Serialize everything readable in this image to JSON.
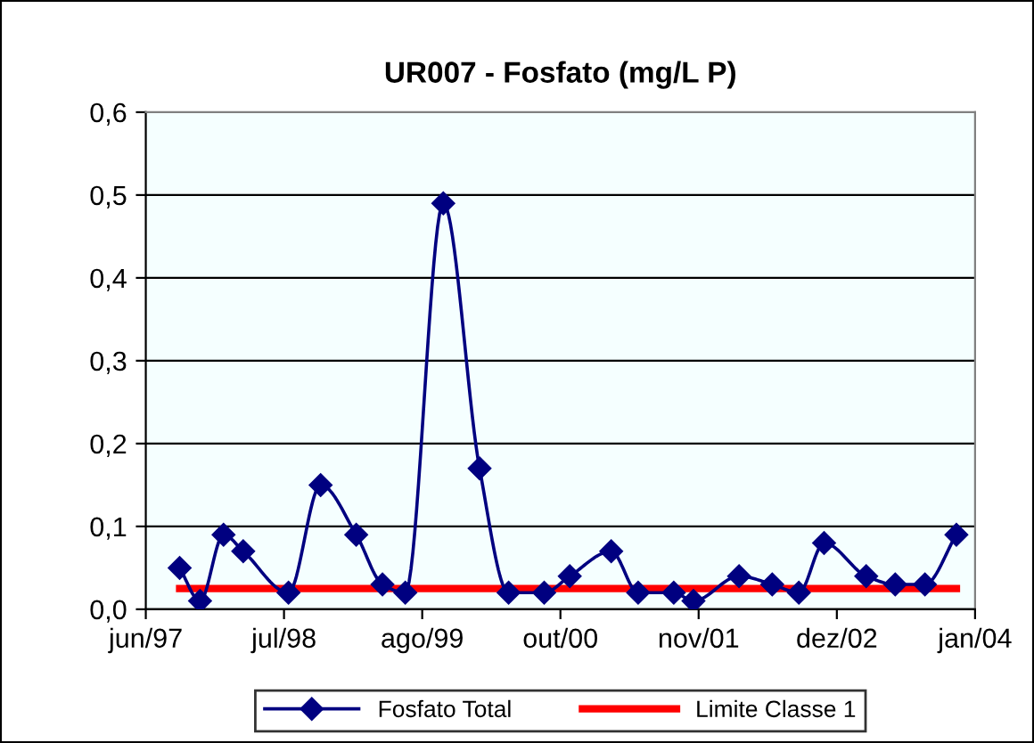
{
  "chart_data": {
    "type": "line",
    "title": "UR007 - Fosfato (mg/L P)",
    "series": [
      {
        "name": "Fosfato Total",
        "color": "#000080",
        "marker": "diamond",
        "x": [
          "1997-09-26",
          "1997-11-24",
          "1998-01-31",
          "1998-03-29",
          "1998-08-07",
          "1998-11-08",
          "1999-02-19",
          "1999-05-06",
          "1999-07-11",
          "1999-10-29",
          "2000-02-11",
          "2000-05-05",
          "2000-08-16",
          "2000-10-29",
          "2001-02-26",
          "2001-05-15",
          "2001-08-26",
          "2001-10-22",
          "2002-03-03",
          "2002-06-07",
          "2002-08-23",
          "2002-11-04",
          "2003-03-06",
          "2003-05-29",
          "2003-08-23",
          "2003-11-22"
        ],
        "values": [
          0.05,
          0.01,
          0.09,
          0.07,
          0.02,
          0.15,
          0.09,
          0.03,
          0.02,
          0.49,
          0.17,
          0.02,
          0.02,
          0.04,
          0.07,
          0.02,
          0.02,
          0.01,
          0.04,
          0.03,
          0.02,
          0.08,
          0.04,
          0.03,
          0.03,
          0.09
        ]
      },
      {
        "name": "Limite Classe 1",
        "color": "#ff0000",
        "marker": "none",
        "x": [
          "1997-09-26",
          "2003-11-22"
        ],
        "values": [
          0.025,
          0.025
        ]
      }
    ],
    "xlim": [
      "1997-06-20",
      "2004-01-15"
    ],
    "xticks": [
      {
        "value": "1997-06-20",
        "label": "jun/97"
      },
      {
        "value": "1998-07-25",
        "label": "jul/98"
      },
      {
        "value": "1999-08-29",
        "label": "ago/99"
      },
      {
        "value": "2000-10-02",
        "label": "out/00"
      },
      {
        "value": "2001-11-06",
        "label": "nov/01"
      },
      {
        "value": "2002-12-11",
        "label": "dez/02"
      },
      {
        "value": "2004-01-15",
        "label": "jan/04"
      }
    ],
    "ylim": [
      0,
      0.6
    ],
    "yticks": [
      {
        "value": 0,
        "label": "0,0"
      },
      {
        "value": 0.1,
        "label": "0,1"
      },
      {
        "value": 0.2,
        "label": "0,2"
      },
      {
        "value": 0.3,
        "label": "0,3"
      },
      {
        "value": 0.4,
        "label": "0,4"
      },
      {
        "value": 0.5,
        "label": "0,5"
      },
      {
        "value": 0.6,
        "label": "0,6"
      }
    ],
    "grid": "y",
    "legend": "bottom",
    "line_style": "solid"
  }
}
